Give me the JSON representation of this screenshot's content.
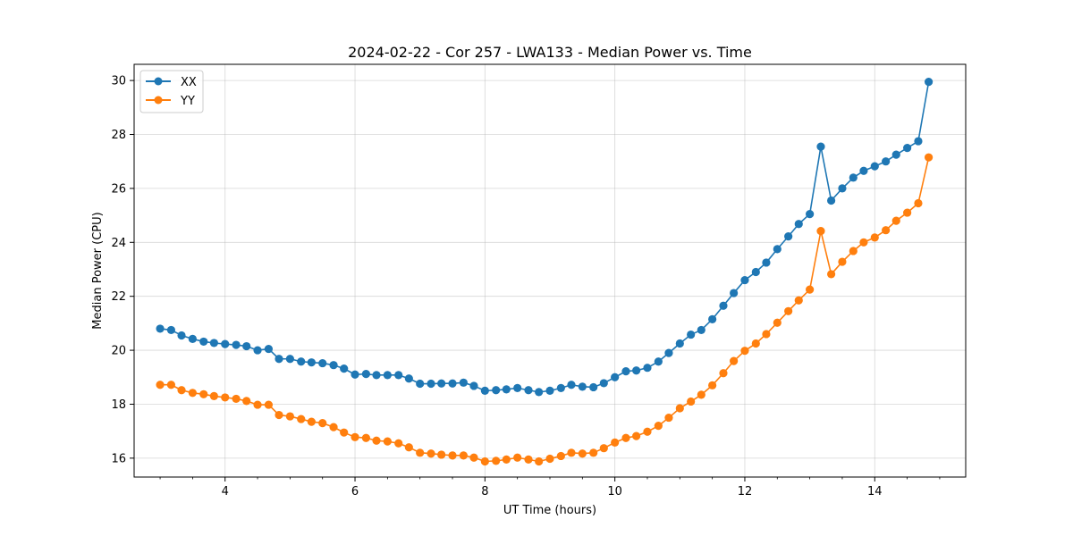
{
  "chart_data": {
    "type": "line",
    "title": "2024-02-22 - Cor 257 - LWA133 - Median Power vs. Time",
    "xlabel": "UT Time (hours)",
    "ylabel": "Median Power (CPU)",
    "xlim": [
      2.6,
      15.4
    ],
    "ylim": [
      15.3,
      30.6
    ],
    "xticks": [
      4,
      6,
      8,
      10,
      12,
      14
    ],
    "yticks": [
      16,
      18,
      20,
      22,
      24,
      26,
      28,
      30
    ],
    "grid": true,
    "legend_position": "top-left",
    "x": [
      3.0,
      3.17,
      3.33,
      3.5,
      3.67,
      3.83,
      4.0,
      4.17,
      4.33,
      4.5,
      4.67,
      4.83,
      5.0,
      5.17,
      5.33,
      5.5,
      5.67,
      5.83,
      6.0,
      6.17,
      6.33,
      6.5,
      6.67,
      6.83,
      7.0,
      7.17,
      7.33,
      7.5,
      7.67,
      7.83,
      8.0,
      8.17,
      8.33,
      8.5,
      8.67,
      8.83,
      9.0,
      9.17,
      9.33,
      9.5,
      9.67,
      9.83,
      10.0,
      10.17,
      10.33,
      10.5,
      10.67,
      10.83,
      11.0,
      11.17,
      11.33,
      11.5,
      11.67,
      11.83,
      12.0,
      12.17,
      12.33,
      12.5,
      12.67,
      12.83,
      13.0,
      13.17,
      13.33,
      13.5,
      13.67,
      13.83,
      14.0,
      14.17,
      14.33,
      14.5,
      14.67,
      14.83
    ],
    "series": [
      {
        "name": "XX",
        "color": "#1f77b4",
        "values": [
          20.8,
          20.75,
          20.55,
          20.42,
          20.32,
          20.27,
          20.23,
          20.2,
          20.15,
          20.0,
          20.05,
          19.68,
          19.68,
          19.58,
          19.55,
          19.52,
          19.45,
          19.32,
          19.1,
          19.12,
          19.08,
          19.08,
          19.08,
          18.95,
          18.76,
          18.76,
          18.77,
          18.77,
          18.8,
          18.68,
          18.5,
          18.52,
          18.55,
          18.6,
          18.52,
          18.45,
          18.5,
          18.6,
          18.72,
          18.65,
          18.63,
          18.78,
          19.0,
          19.22,
          19.25,
          19.35,
          19.58,
          19.9,
          20.25,
          20.58,
          20.75,
          21.15,
          21.65,
          22.12,
          22.6,
          22.9,
          23.25,
          23.75,
          24.22,
          24.68,
          25.05,
          27.55,
          25.55,
          26.0,
          26.4,
          26.65,
          26.82,
          27.0,
          27.25,
          27.5,
          27.75,
          29.95
        ]
      },
      {
        "name": "YY",
        "color": "#ff7f0e",
        "values": [
          18.72,
          18.72,
          18.52,
          18.42,
          18.37,
          18.3,
          18.25,
          18.2,
          18.12,
          17.98,
          17.98,
          17.6,
          17.55,
          17.45,
          17.35,
          17.3,
          17.15,
          16.95,
          16.78,
          16.75,
          16.65,
          16.62,
          16.55,
          16.4,
          16.2,
          16.17,
          16.13,
          16.1,
          16.1,
          16.02,
          15.88,
          15.9,
          15.95,
          16.02,
          15.95,
          15.88,
          15.98,
          16.08,
          16.2,
          16.17,
          16.2,
          16.37,
          16.58,
          16.75,
          16.82,
          16.98,
          17.2,
          17.5,
          17.85,
          18.1,
          18.35,
          18.7,
          19.15,
          19.6,
          19.98,
          20.25,
          20.6,
          21.02,
          21.45,
          21.85,
          22.25,
          24.42,
          22.82,
          23.28,
          23.68,
          24.0,
          24.18,
          24.45,
          24.8,
          25.1,
          25.45,
          27.15
        ]
      }
    ]
  }
}
